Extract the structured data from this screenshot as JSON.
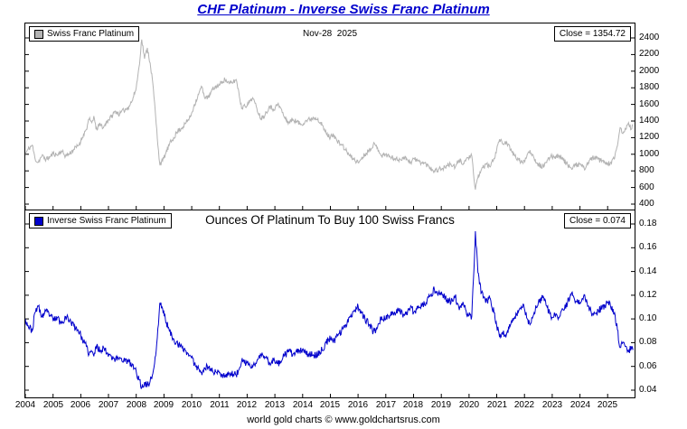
{
  "page": {
    "title": "CHF Platinum - Inverse Swiss Franc Platinum",
    "title_color": "#0000cc",
    "date_label": "Nov-28  2025",
    "footer": "world gold charts © www.goldchartsrus.com"
  },
  "x_axis": {
    "xlim": [
      2004,
      2025.97
    ],
    "tick_values": [
      2004,
      2005,
      2006,
      2007,
      2008,
      2009,
      2010,
      2011,
      2012,
      2013,
      2014,
      2015,
      2016,
      2017,
      2018,
      2019,
      2020,
      2021,
      2022,
      2023,
      2024,
      2025
    ],
    "tick_labels": [
      "2004",
      "2005",
      "2006",
      "2007",
      "2008",
      "2009",
      "2010",
      "2011",
      "2012",
      "2013",
      "2014",
      "2015",
      "2016",
      "2017",
      "2018",
      "2019",
      "2020",
      "2021",
      "2022",
      "2023",
      "2024",
      "2025"
    ]
  },
  "chart_data": [
    {
      "type": "line",
      "name": "Swiss Franc Platinum",
      "legend": "Swiss Franc Platinum",
      "close": 1354.72,
      "close_label": "Close = 1354.72",
      "color": "#b3b3b3",
      "ylim": [
        400,
        2400
      ],
      "ytick_values": [
        2400,
        2200,
        2000,
        1800,
        1600,
        1400,
        1200,
        1000,
        800,
        600,
        400
      ],
      "ytick_labels": [
        "2400",
        "2200",
        "2000",
        "1800",
        "1600",
        "1400",
        "1200",
        "1000",
        "800",
        "600",
        "400"
      ],
      "noise": 30,
      "seed": 11,
      "x": [
        2004.0,
        2004.1,
        2004.25,
        2004.35,
        2004.45,
        2004.6,
        2004.75,
        2004.9,
        2005.0,
        2005.15,
        2005.3,
        2005.45,
        2005.6,
        2005.75,
        2005.9,
        2006.0,
        2006.1,
        2006.2,
        2006.3,
        2006.4,
        2006.47,
        2006.55,
        2006.7,
        2006.82,
        2006.95,
        2007.1,
        2007.25,
        2007.4,
        2007.55,
        2007.7,
        2007.85,
        2008.0,
        2008.1,
        2008.2,
        2008.3,
        2008.4,
        2008.5,
        2008.6,
        2008.7,
        2008.8,
        2008.85,
        2008.95,
        2009.05,
        2009.2,
        2009.35,
        2009.5,
        2009.65,
        2009.8,
        2009.95,
        2010.1,
        2010.25,
        2010.35,
        2010.45,
        2010.6,
        2010.75,
        2010.9,
        2011.0,
        2011.1,
        2011.2,
        2011.35,
        2011.5,
        2011.6,
        2011.7,
        2011.8,
        2011.9,
        2012.0,
        2012.1,
        2012.2,
        2012.35,
        2012.5,
        2012.65,
        2012.8,
        2012.95,
        2013.1,
        2013.2,
        2013.35,
        2013.5,
        2013.65,
        2013.8,
        2013.95,
        2014.1,
        2014.25,
        2014.4,
        2014.55,
        2014.7,
        2014.85,
        2015.0,
        2015.1,
        2015.25,
        2015.4,
        2015.55,
        2015.7,
        2015.85,
        2016.0,
        2016.1,
        2016.25,
        2016.4,
        2016.55,
        2016.7,
        2016.85,
        2017.0,
        2017.15,
        2017.3,
        2017.45,
        2017.6,
        2017.75,
        2017.9,
        2018.0,
        2018.15,
        2018.3,
        2018.45,
        2018.6,
        2018.75,
        2018.9,
        2019.05,
        2019.2,
        2019.35,
        2019.5,
        2019.65,
        2019.8,
        2019.95,
        2020.1,
        2020.18,
        2020.23,
        2020.32,
        2020.45,
        2020.6,
        2020.75,
        2020.9,
        2021.0,
        2021.1,
        2021.2,
        2021.35,
        2021.5,
        2021.65,
        2021.8,
        2021.95,
        2022.1,
        2022.2,
        2022.35,
        2022.5,
        2022.65,
        2022.8,
        2022.95,
        2023.1,
        2023.25,
        2023.4,
        2023.55,
        2023.7,
        2023.85,
        2024.0,
        2024.15,
        2024.3,
        2024.45,
        2024.6,
        2024.75,
        2024.9,
        2025.0,
        2025.1,
        2025.25,
        2025.35,
        2025.45,
        2025.55,
        2025.65,
        2025.75,
        2025.85,
        2025.91
      ],
      "values": [
        1000,
        1060,
        1110,
        950,
        900,
        980,
        940,
        970,
        1010,
        990,
        1040,
        980,
        1010,
        1060,
        1100,
        1160,
        1240,
        1300,
        1420,
        1380,
        1460,
        1300,
        1360,
        1320,
        1400,
        1450,
        1520,
        1480,
        1530,
        1560,
        1640,
        1800,
        2050,
        2380,
        2150,
        2280,
        2100,
        1850,
        1450,
        1050,
        880,
        920,
        1000,
        1120,
        1200,
        1280,
        1320,
        1380,
        1450,
        1600,
        1720,
        1820,
        1700,
        1680,
        1780,
        1820,
        1830,
        1880,
        1900,
        1850,
        1870,
        1900,
        1750,
        1550,
        1600,
        1580,
        1650,
        1680,
        1550,
        1430,
        1480,
        1580,
        1540,
        1600,
        1560,
        1440,
        1380,
        1420,
        1390,
        1360,
        1400,
        1420,
        1440,
        1430,
        1350,
        1250,
        1200,
        1250,
        1150,
        1120,
        1050,
        980,
        940,
        900,
        940,
        1000,
        1050,
        1120,
        1080,
        980,
        1000,
        970,
        950,
        930,
        960,
        950,
        900,
        950,
        920,
        900,
        880,
        840,
        800,
        820,
        830,
        860,
        880,
        840,
        930,
        890,
        960,
        980,
        700,
        575,
        720,
        820,
        880,
        850,
        950,
        1060,
        1180,
        1130,
        1150,
        1050,
        980,
        930,
        890,
        1000,
        1050,
        950,
        880,
        850,
        900,
        980,
        970,
        990,
        930,
        880,
        820,
        870,
        880,
        830,
        900,
        960,
        950,
        920,
        900,
        880,
        900,
        950,
        1100,
        1320,
        1250,
        1300,
        1380,
        1300,
        1355
      ]
    },
    {
      "type": "line",
      "name": "Inverse Swiss Franc Platinum",
      "legend": "Inverse Swiss Franc Platinum",
      "title": "Ounces Of Platinum To Buy 100 Swiss Francs",
      "close": 0.074,
      "close_label": "Close = 0.074",
      "color": "#0000cc",
      "ylim": [
        0.04,
        0.18
      ],
      "ytick_values": [
        0.18,
        0.16,
        0.14,
        0.12,
        0.1,
        0.08,
        0.06,
        0.04
      ],
      "ytick_labels": [
        "0.18",
        "0.16",
        "0.14",
        "0.12",
        "0.10",
        "0.08",
        "0.06",
        "0.04"
      ],
      "noise": 0.003,
      "seed": 23,
      "x": [
        2004.0,
        2004.1,
        2004.25,
        2004.35,
        2004.45,
        2004.6,
        2004.75,
        2004.9,
        2005.0,
        2005.15,
        2005.3,
        2005.45,
        2005.6,
        2005.75,
        2005.9,
        2006.0,
        2006.1,
        2006.2,
        2006.3,
        2006.4,
        2006.47,
        2006.55,
        2006.7,
        2006.82,
        2006.95,
        2007.1,
        2007.25,
        2007.4,
        2007.55,
        2007.7,
        2007.85,
        2008.0,
        2008.1,
        2008.2,
        2008.3,
        2008.4,
        2008.5,
        2008.6,
        2008.7,
        2008.8,
        2008.85,
        2008.95,
        2009.05,
        2009.2,
        2009.35,
        2009.5,
        2009.65,
        2009.8,
        2009.95,
        2010.1,
        2010.25,
        2010.35,
        2010.45,
        2010.6,
        2010.75,
        2010.9,
        2011.0,
        2011.1,
        2011.2,
        2011.35,
        2011.5,
        2011.6,
        2011.7,
        2011.8,
        2011.9,
        2012.0,
        2012.1,
        2012.2,
        2012.35,
        2012.5,
        2012.65,
        2012.8,
        2012.95,
        2013.1,
        2013.2,
        2013.35,
        2013.5,
        2013.65,
        2013.8,
        2013.95,
        2014.1,
        2014.25,
        2014.4,
        2014.55,
        2014.7,
        2014.85,
        2015.0,
        2015.1,
        2015.25,
        2015.4,
        2015.55,
        2015.7,
        2015.85,
        2016.0,
        2016.1,
        2016.25,
        2016.4,
        2016.55,
        2016.7,
        2016.85,
        2017.0,
        2017.15,
        2017.3,
        2017.45,
        2017.6,
        2017.75,
        2017.9,
        2018.0,
        2018.15,
        2018.3,
        2018.45,
        2018.6,
        2018.75,
        2018.9,
        2019.05,
        2019.2,
        2019.35,
        2019.5,
        2019.65,
        2019.8,
        2019.95,
        2020.1,
        2020.18,
        2020.23,
        2020.32,
        2020.45,
        2020.6,
        2020.75,
        2020.9,
        2021.0,
        2021.1,
        2021.2,
        2021.35,
        2021.5,
        2021.65,
        2021.8,
        2021.95,
        2022.1,
        2022.2,
        2022.35,
        2022.5,
        2022.65,
        2022.8,
        2022.95,
        2023.1,
        2023.25,
        2023.4,
        2023.55,
        2023.7,
        2023.85,
        2024.0,
        2024.15,
        2024.3,
        2024.45,
        2024.6,
        2024.75,
        2024.9,
        2025.0,
        2025.1,
        2025.25,
        2025.35,
        2025.45,
        2025.55,
        2025.65,
        2025.75,
        2025.85,
        2025.91
      ],
      "values": [
        0.1,
        0.0943,
        0.0901,
        0.1053,
        0.1111,
        0.102,
        0.1064,
        0.1031,
        0.099,
        0.101,
        0.0962,
        0.102,
        0.099,
        0.0943,
        0.0909,
        0.0862,
        0.0806,
        0.0769,
        0.0704,
        0.0725,
        0.0685,
        0.0769,
        0.0735,
        0.0758,
        0.0714,
        0.069,
        0.0658,
        0.0676,
        0.0654,
        0.0641,
        0.061,
        0.0556,
        0.0488,
        0.042,
        0.0465,
        0.0439,
        0.0476,
        0.0541,
        0.069,
        0.0952,
        0.1136,
        0.1087,
        0.1,
        0.0893,
        0.0833,
        0.0781,
        0.0758,
        0.0725,
        0.069,
        0.0625,
        0.0581,
        0.0549,
        0.0588,
        0.0595,
        0.0562,
        0.0549,
        0.0546,
        0.0532,
        0.0526,
        0.0541,
        0.0535,
        0.0526,
        0.0571,
        0.0645,
        0.0625,
        0.0633,
        0.0606,
        0.0595,
        0.0645,
        0.0699,
        0.0676,
        0.0633,
        0.0649,
        0.0625,
        0.0641,
        0.0694,
        0.0725,
        0.0704,
        0.0719,
        0.0735,
        0.0714,
        0.0704,
        0.0694,
        0.0699,
        0.0741,
        0.08,
        0.0833,
        0.08,
        0.087,
        0.0893,
        0.0952,
        0.102,
        0.1064,
        0.1111,
        0.1064,
        0.1,
        0.0952,
        0.0893,
        0.0926,
        0.102,
        0.1,
        0.1031,
        0.1053,
        0.1075,
        0.1042,
        0.1053,
        0.1111,
        0.1053,
        0.1087,
        0.1111,
        0.1136,
        0.119,
        0.125,
        0.122,
        0.1205,
        0.1163,
        0.1136,
        0.119,
        0.1075,
        0.1124,
        0.1042,
        0.102,
        0.1429,
        0.1739,
        0.1389,
        0.122,
        0.1136,
        0.1176,
        0.1053,
        0.0943,
        0.0847,
        0.0885,
        0.087,
        0.0952,
        0.102,
        0.1075,
        0.1124,
        0.1,
        0.0952,
        0.1053,
        0.1136,
        0.1176,
        0.1111,
        0.102,
        0.1031,
        0.101,
        0.1075,
        0.1136,
        0.122,
        0.1149,
        0.1136,
        0.1205,
        0.1111,
        0.1042,
        0.1053,
        0.1087,
        0.1111,
        0.1136,
        0.1111,
        0.1053,
        0.0909,
        0.0758,
        0.08,
        0.0769,
        0.0725,
        0.0769,
        0.0738
      ]
    }
  ]
}
